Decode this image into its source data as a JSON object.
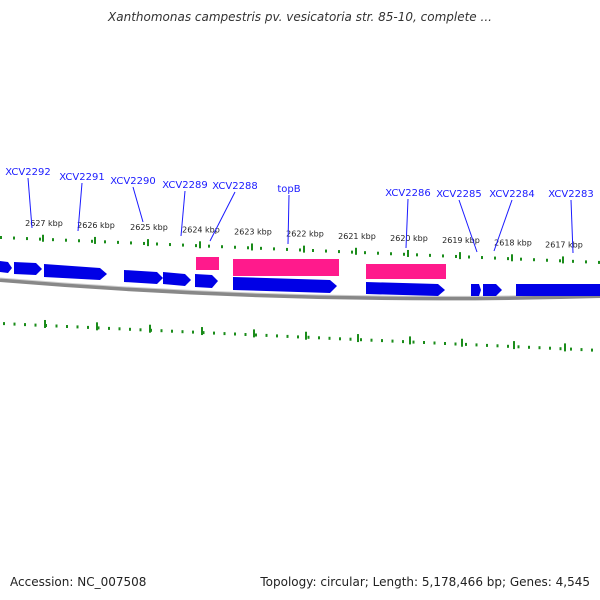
{
  "title": "Xanthomonas campestris pv. vesicatoria str. 85-10, complete ...",
  "footer": {
    "accession": "Accession: NC_007508",
    "summary": "Topology: circular; Length: 5,178,466 bp; Genes: 4,545"
  },
  "colors": {
    "forward_gene": "#0000e6",
    "pink_gene": "#ff1a8c",
    "ticks": "#1a8c1a",
    "backbone": "#888888",
    "gene_label": "#1a1aff"
  },
  "kbp_ticks": [
    {
      "kbp": 2627,
      "label": "2627 kbp"
    },
    {
      "kbp": 2626,
      "label": "2626 kbp"
    },
    {
      "kbp": 2625,
      "label": "2625 kbp"
    },
    {
      "kbp": 2624,
      "label": "2624 kbp"
    },
    {
      "kbp": 2623,
      "label": "2623 kbp"
    },
    {
      "kbp": 2622,
      "label": "2622 kbp"
    },
    {
      "kbp": 2621,
      "label": "2621 kbp"
    },
    {
      "kbp": 2620,
      "label": "2620 kbp"
    },
    {
      "kbp": 2619,
      "label": "2619 kbp"
    },
    {
      "kbp": 2618,
      "label": "2618 kbp"
    },
    {
      "kbp": 2617,
      "label": "2617 kbp"
    }
  ],
  "gene_labels": [
    "XCV2292",
    "XCV2291",
    "XCV2290",
    "XCV2289",
    "XCV2288",
    "topB",
    "XCV2286",
    "XCV2285",
    "XCV2284",
    "XCV2283"
  ]
}
